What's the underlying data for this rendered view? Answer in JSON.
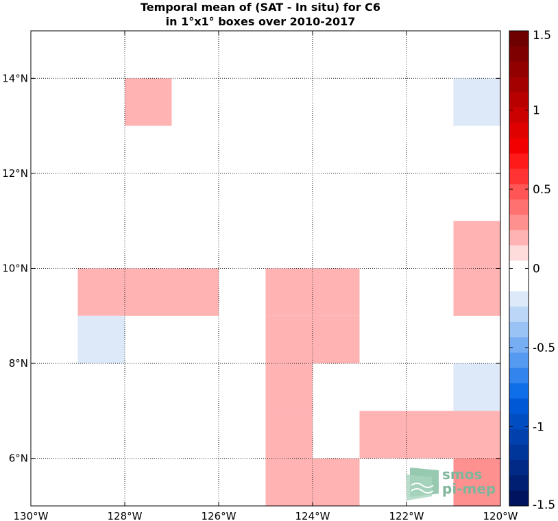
{
  "chart_data": {
    "type": "heatmap",
    "title_line1": "Temporal mean of (SAT - In situ) for C6",
    "title_line2": "in 1°x1° boxes over 2010-2017",
    "x_range": [
      -130,
      -120
    ],
    "y_range": [
      5,
      15
    ],
    "x_ticks": [
      {
        "value": -130,
        "label": "130°W"
      },
      {
        "value": -128,
        "label": "128°W"
      },
      {
        "value": -126,
        "label": "126°W"
      },
      {
        "value": -124,
        "label": "124°W"
      },
      {
        "value": -122,
        "label": "122°W"
      },
      {
        "value": -120,
        "label": "120°W"
      }
    ],
    "y_ticks": [
      {
        "value": 6,
        "label": "6°N"
      },
      {
        "value": 8,
        "label": "8°N"
      },
      {
        "value": 10,
        "label": "10°N"
      },
      {
        "value": 12,
        "label": "12°N"
      },
      {
        "value": 14,
        "label": "14°N"
      }
    ],
    "grid": true,
    "cells": [
      {
        "lon_min": -128,
        "lat_min": 13,
        "value": 0.15
      },
      {
        "lon_min": -121,
        "lat_min": 13,
        "value": -0.15
      },
      {
        "lon_min": -121,
        "lat_min": 10,
        "value": 0.15
      },
      {
        "lon_min": -121,
        "lat_min": 9,
        "value": 0.15
      },
      {
        "lon_min": -129,
        "lat_min": 9,
        "value": 0.15
      },
      {
        "lon_min": -128,
        "lat_min": 9,
        "value": 0.15
      },
      {
        "lon_min": -127,
        "lat_min": 9,
        "value": 0.15
      },
      {
        "lon_min": -125,
        "lat_min": 9,
        "value": 0.15
      },
      {
        "lon_min": -124,
        "lat_min": 9,
        "value": 0.15
      },
      {
        "lon_min": -129,
        "lat_min": 8,
        "value": -0.15
      },
      {
        "lon_min": -125,
        "lat_min": 8,
        "value": 0.15
      },
      {
        "lon_min": -124,
        "lat_min": 8,
        "value": 0.15
      },
      {
        "lon_min": -125,
        "lat_min": 7,
        "value": 0.15
      },
      {
        "lon_min": -125,
        "lat_min": 6,
        "value": 0.15
      },
      {
        "lon_min": -125,
        "lat_min": 5,
        "value": 0.15
      },
      {
        "lon_min": -124,
        "lat_min": 5,
        "value": 0.15
      },
      {
        "lon_min": -121,
        "lat_min": 7,
        "value": -0.15
      },
      {
        "lon_min": -123,
        "lat_min": 6,
        "value": 0.15
      },
      {
        "lon_min": -122,
        "lat_min": 6,
        "value": 0.15
      },
      {
        "lon_min": -121,
        "lat_min": 6,
        "value": 0.15
      },
      {
        "lon_min": -121,
        "lat_min": 5,
        "value": 0.3
      }
    ],
    "colorbar": {
      "range": [
        -1.5,
        1.5
      ],
      "ticks": [
        {
          "value": 1.5,
          "label": "1.5"
        },
        {
          "value": 1,
          "label": "1"
        },
        {
          "value": 0.5,
          "label": "0.5"
        },
        {
          "value": 0,
          "label": "0"
        },
        {
          "value": -0.5,
          "label": "-0.5"
        },
        {
          "value": -1,
          "label": "-1"
        },
        {
          "value": -1.5,
          "label": "-1.5"
        }
      ],
      "colors_top_to_bottom": [
        "#6e0000",
        "#7f0000",
        "#920000",
        "#a50000",
        "#b80000",
        "#cb0000",
        "#df0000",
        "#f20000",
        "#ff1a1a",
        "#ff3333",
        "#ff5555",
        "#ff7070",
        "#ff9090",
        "#ffb3b3",
        "#ffdcdc",
        "#ffffff",
        "#ffffff",
        "#dde9f8",
        "#bbd6f7",
        "#99c2f5",
        "#77aef3",
        "#5599f0",
        "#3385ee",
        "#0f6fe8",
        "#0058d6",
        "#004dc2",
        "#0041ae",
        "#00369a",
        "#002a86",
        "#001f72",
        "#00135e"
      ]
    },
    "logo_text": [
      "smos",
      "pi-mep"
    ]
  }
}
